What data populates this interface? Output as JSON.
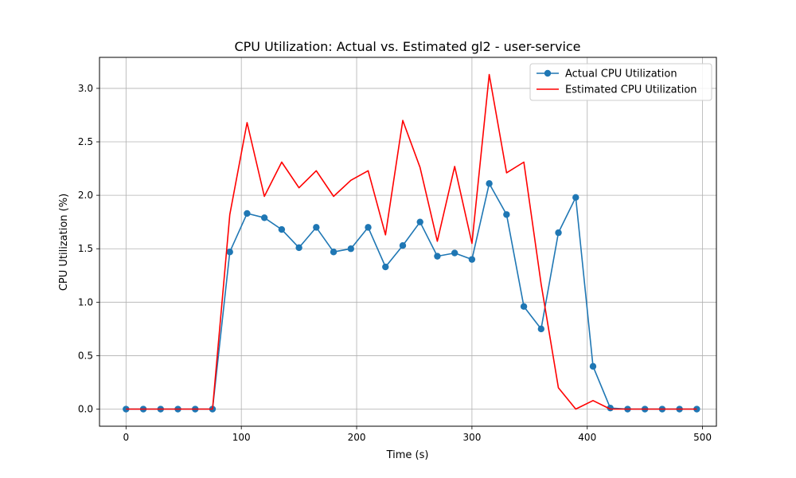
{
  "chart_data": {
    "type": "line",
    "title": "CPU Utilization: Actual vs. Estimated gl2 - user-service",
    "xlabel": "Time (s)",
    "ylabel": "CPU Utilization (%)",
    "xlim": [
      -23,
      512
    ],
    "ylim": [
      -0.16,
      3.29
    ],
    "xticks": [
      0,
      100,
      200,
      300,
      400,
      500
    ],
    "yticks": [
      0.0,
      0.5,
      1.0,
      1.5,
      2.0,
      2.5,
      3.0
    ],
    "xtick_labels": [
      "0",
      "100",
      "200",
      "300",
      "400",
      "500"
    ],
    "ytick_labels": [
      "0.0",
      "0.5",
      "1.0",
      "1.5",
      "2.0",
      "2.5",
      "3.0"
    ],
    "grid": true,
    "legend_position": "top-right",
    "series": [
      {
        "name": "Actual CPU Utilization",
        "color": "#1f77b4",
        "marker": "circle",
        "x": [
          0,
          15,
          30,
          45,
          60,
          75,
          90,
          105,
          120,
          135,
          150,
          165,
          180,
          195,
          210,
          225,
          240,
          255,
          270,
          285,
          300,
          315,
          330,
          345,
          360,
          375,
          390,
          405,
          420,
          435,
          450,
          465,
          480,
          495
        ],
        "y": [
          0,
          0,
          0,
          0,
          0,
          0,
          1.47,
          1.83,
          1.79,
          1.68,
          1.51,
          1.7,
          1.47,
          1.5,
          1.7,
          1.33,
          1.53,
          1.75,
          1.43,
          1.46,
          1.4,
          2.11,
          1.82,
          0.96,
          0.75,
          1.65,
          1.98,
          0.4,
          0.01,
          0,
          0,
          0,
          0,
          0
        ]
      },
      {
        "name": "Estimated CPU Utilization",
        "color": "#ff0000",
        "marker": "none",
        "x": [
          0,
          15,
          30,
          45,
          60,
          75,
          90,
          105,
          120,
          135,
          150,
          165,
          180,
          195,
          210,
          225,
          240,
          255,
          270,
          285,
          300,
          315,
          330,
          345,
          360,
          375,
          390,
          405,
          420,
          435,
          450,
          465,
          480,
          495
        ],
        "y": [
          0,
          0,
          0,
          0,
          0,
          0,
          1.82,
          2.68,
          1.99,
          2.31,
          2.07,
          2.23,
          1.99,
          2.14,
          2.23,
          1.63,
          2.7,
          2.26,
          1.57,
          2.27,
          1.55,
          3.13,
          2.21,
          2.31,
          1.17,
          0.2,
          0,
          0.08,
          0,
          0,
          0,
          0,
          0,
          0
        ]
      }
    ]
  }
}
